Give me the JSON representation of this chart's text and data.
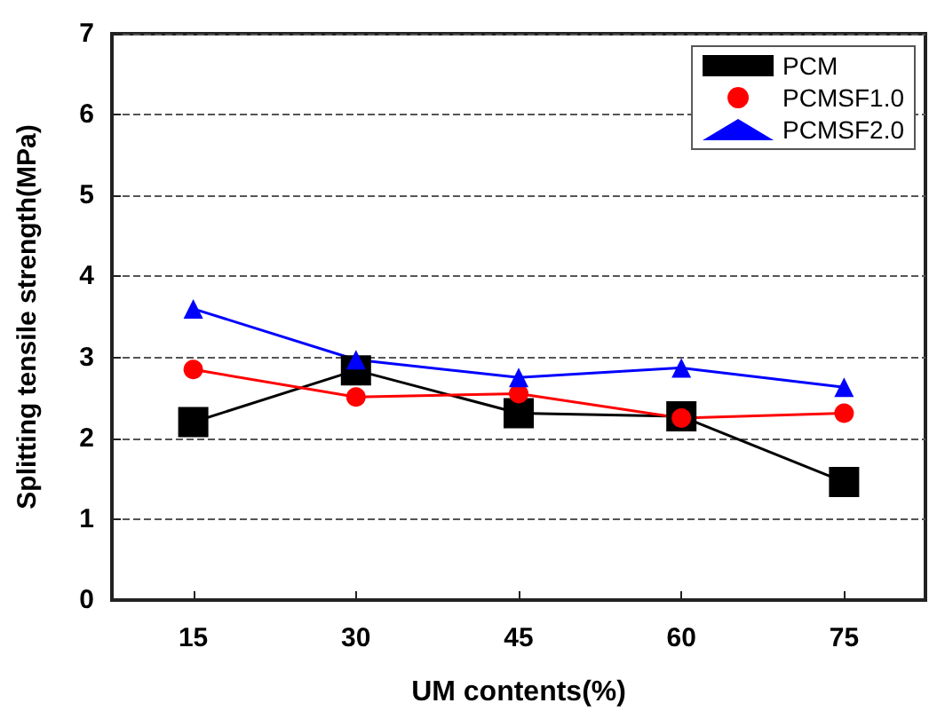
{
  "chart_data": {
    "type": "line",
    "xlabel": "UM contents(%)",
    "ylabel": "Splitting tensile strength(MPa)",
    "x": [
      15,
      30,
      45,
      60,
      75
    ],
    "series": [
      {
        "name": "PCM",
        "color": "#000000",
        "marker": "square",
        "values": [
          2.2,
          2.84,
          2.31,
          2.27,
          1.46
        ]
      },
      {
        "name": "PCMSF1.0",
        "color": "#ff0000",
        "marker": "circle",
        "values": [
          2.85,
          2.51,
          2.55,
          2.25,
          2.31
        ]
      },
      {
        "name": "PCMSF2.0",
        "color": "#0000ff",
        "marker": "triangle",
        "values": [
          3.6,
          2.97,
          2.75,
          2.87,
          2.63
        ]
      }
    ],
    "xlim": [
      7.5,
      82.5
    ],
    "xticks": [
      15,
      30,
      45,
      60,
      75
    ],
    "ylim": [
      0,
      7
    ],
    "yticks": [
      0,
      1,
      2,
      3,
      4,
      5,
      6,
      7
    ],
    "grid": "y",
    "legend": "top right",
    "line_style": "solid"
  }
}
